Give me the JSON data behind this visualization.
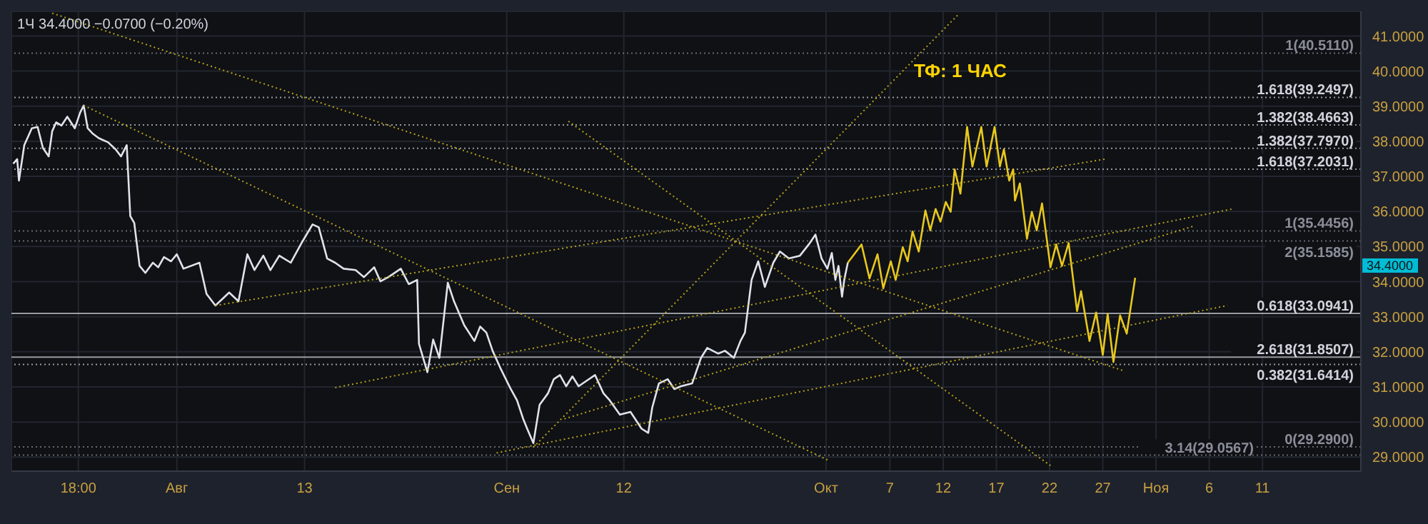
{
  "chart_data": {
    "type": "line",
    "title": "ТФ: 1 ЧАС",
    "subtitle": "1Ч 34.4000 −0.0700 (−0.20%)",
    "xlim": [
      "--07-16T11:00",
      "--11-20T06:00"
    ],
    "ylim": [
      28.6,
      41.7
    ],
    "xticks": [
      {
        "value": "--07-22T18:00",
        "label": "18:00"
      },
      {
        "value": "--08-01",
        "label": "Авг"
      },
      {
        "value": "--08-13",
        "label": "13"
      },
      {
        "value": "--09-01",
        "label": "Сен"
      },
      {
        "value": "--09-12",
        "label": "12"
      },
      {
        "value": "--10-01",
        "label": "Окт"
      },
      {
        "value": "--10-07",
        "label": "7"
      },
      {
        "value": "--10-12",
        "label": "12"
      },
      {
        "value": "--10-17",
        "label": "17"
      },
      {
        "value": "--10-22",
        "label": "22"
      },
      {
        "value": "--10-27",
        "label": "27"
      },
      {
        "value": "--11-01",
        "label": "Ноя"
      },
      {
        "value": "--11-06",
        "label": "6"
      },
      {
        "value": "--11-11",
        "label": "11"
      }
    ],
    "yticks": [
      {
        "value": 29,
        "label": "29.0000"
      },
      {
        "value": 30,
        "label": "30.0000"
      },
      {
        "value": 31,
        "label": "31.0000"
      },
      {
        "value": 32,
        "label": "32.0000"
      },
      {
        "value": 33,
        "label": "33.0000"
      },
      {
        "value": 34,
        "label": "34.0000"
      },
      {
        "value": 35,
        "label": "35.0000"
      },
      {
        "value": 36,
        "label": "36.0000"
      },
      {
        "value": 37,
        "label": "37.0000"
      },
      {
        "value": 38,
        "label": "38.0000"
      },
      {
        "value": 39,
        "label": "39.0000"
      },
      {
        "value": 40,
        "label": "40.0000"
      },
      {
        "value": 41,
        "label": "41.0000"
      }
    ],
    "grid": true,
    "series": [
      {
        "color": "#e0e3eb",
        "line_style": "solid",
        "x": [
          "--07-16T15:00",
          "--07-17T00:00",
          "--07-17T04:00",
          "--07-17T16:00",
          "--07-18T09:00",
          "--07-18T22:00",
          "--07-19T10:00",
          "--07-19T23:00",
          "--07-20T07:00",
          "--07-20T16:00",
          "--07-21T04:00",
          "--07-21T17:00",
          "--07-22T10:00",
          "--07-22T22:00",
          "--07-23T06:00",
          "--07-23T15:00",
          "--07-24T03:00",
          "--07-24T16:00",
          "--07-25T13:00",
          "--07-26T06:00",
          "--07-26T18:00",
          "--07-27T07:00",
          "--07-27T15:00",
          "--07-28T00:00",
          "--07-28T12:00",
          "--07-29T01:00",
          "--07-29T18:00",
          "--07-30T06:00",
          "--07-30T19:00",
          "--07-31T11:00",
          "--08-01T00:00",
          "--08-01T15:00",
          "--08-03T03:00",
          "--08-03T19:00",
          "--08-04T15:00",
          "--08-05T22:00",
          "--08-06T19:00",
          "--08-07T15:00",
          "--08-08T07:00",
          "--08-09T03:00",
          "--08-09T19:00",
          "--08-10T15:00",
          "--08-11T17:00",
          "--08-12T19:00",
          "--08-13T18:00",
          "--08-14T08:00",
          "--08-15T03:00",
          "--08-15T21:00",
          "--08-16T16:00",
          "--08-17T19:00",
          "--08-18T14:00",
          "--08-19T13:00",
          "--08-20T03:00",
          "--08-20T21:00",
          "--08-22T01:00",
          "--08-22T19:00",
          "--08-23T14:00",
          "--08-23T18:00",
          "--08-24T13:00",
          "--08-25T02:00",
          "--08-25T16:00",
          "--08-26T11:00",
          "--08-27T01:00",
          "--08-28T00:00",
          "--08-28T23:00",
          "--08-29T12:00",
          "--08-30T02:00",
          "--08-30T16:00",
          "--08-31T11:00",
          "--09-01T09:00",
          "--09-01T23:00",
          "--09-02T13:00",
          "--09-02T22:00",
          "--09-03T12:00",
          "--09-04T02:00",
          "--09-04T21:00",
          "--09-05T10:00",
          "--09-06T00:00",
          "--09-06T14:00",
          "--09-07T04:00",
          "--09-07T18:00",
          "--09-08T17:00",
          "--09-09T07:00",
          "--09-10T02:00",
          "--09-10T16:00",
          "--09-11T15:00",
          "--09-12T15:00",
          "--09-13T16:00",
          "--09-14T07:00",
          "--09-14T16:00",
          "--09-15T07:00",
          "--09-16T03:00",
          "--09-16T18:00",
          "--09-17T09:00",
          "--09-18T10:00",
          "--09-19T06:00",
          "--09-19T20:00",
          "--09-20T21:00",
          "--09-21T12:00",
          "--09-22T08:00",
          "--09-22T23:00",
          "--09-23T09:00",
          "--09-24T00:00",
          "--09-24T15:00",
          "--09-25T06:00",
          "--09-26T01:00",
          "--09-26T16:00",
          "--09-27T12:00",
          "--09-28T13:00",
          "--09-29T09:00",
          "--09-30T00:00",
          "--09-30T14:00",
          "--10-01T03:00",
          "--10-01T13:00",
          "--10-01T21:00",
          "--10-02T04:00",
          "--10-02T12:00",
          "--10-02T17:00",
          "--10-03T01:00"
        ],
        "values": [
          37.36,
          37.49,
          36.88,
          37.89,
          38.37,
          38.41,
          37.81,
          37.57,
          38.29,
          38.54,
          38.45,
          38.7,
          38.37,
          38.82,
          39.02,
          38.37,
          38.21,
          38.09,
          37.97,
          37.77,
          37.57,
          37.89,
          35.87,
          35.67,
          34.45,
          34.25,
          34.54,
          34.41,
          34.7,
          34.58,
          34.78,
          34.37,
          34.54,
          33.65,
          33.32,
          33.69,
          33.44,
          34.78,
          34.33,
          34.74,
          34.33,
          34.74,
          34.54,
          35.14,
          35.63,
          35.55,
          34.66,
          34.54,
          34.37,
          34.33,
          34.13,
          34.41,
          34.01,
          34.13,
          34.37,
          33.93,
          34.05,
          32.23,
          31.42,
          32.35,
          31.83,
          33.97,
          33.44,
          32.76,
          32.31,
          32.72,
          32.55,
          32.03,
          31.5,
          30.94,
          30.62,
          30.09,
          29.81,
          29.4,
          30.49,
          30.82,
          31.22,
          31.34,
          31.02,
          31.3,
          31.02,
          31.22,
          31.34,
          30.82,
          30.62,
          30.21,
          30.29,
          29.81,
          29.69,
          30.41,
          31.1,
          31.22,
          30.94,
          31.02,
          31.1,
          31.83,
          32.11,
          31.95,
          32.03,
          31.83,
          32.31,
          32.55,
          34.05,
          34.58,
          33.85,
          34.54,
          34.86,
          34.66,
          34.74,
          35.06,
          35.34,
          34.66,
          34.37,
          34.82,
          34.05,
          34.45,
          33.57,
          34.05,
          34.54
        ]
      },
      {
        "color": "#e8c81e",
        "line_style": "solid",
        "x": [
          "--10-03T01:00",
          "--10-04T08:00",
          "--10-05T02:00",
          "--10-05T20:00",
          "--10-06T09:00",
          "--10-07T02:00",
          "--10-07T13:00",
          "--10-08T05:00",
          "--10-08T16:00",
          "--10-09T03:00",
          "--10-09T17:00",
          "--10-10T08:00",
          "--10-10T19:00",
          "--10-11T07:00",
          "--10-11T18:00",
          "--10-12T06:00",
          "--10-12T17:00",
          "--10-13T02:00",
          "--10-13T15:00",
          "--10-14T06:00",
          "--10-14T18:00",
          "--10-15T14:00",
          "--10-16T02:00",
          "--10-16T20:00",
          "--10-17T08:00",
          "--10-17T17:00",
          "--10-18T05:00",
          "--10-18T14:00",
          "--10-18T18:00",
          "--10-19T05:00",
          "--10-19T21:00",
          "--10-20T08:00",
          "--10-20T19:00",
          "--10-21T07:00",
          "--10-22T02:00",
          "--10-22T15:00",
          "--10-23T04:00",
          "--10-23T19:00",
          "--10-24T14:00",
          "--10-24T23:00",
          "--10-25T18:00",
          "--10-26T09:00",
          "--10-27T00:00",
          "--10-27T11:00",
          "--10-28T00:00",
          "--10-28T15:00",
          "--10-29T06:00",
          "--10-30T01:00"
        ],
        "values": [
          34.54,
          35.06,
          34.09,
          34.78,
          33.81,
          34.58,
          34.05,
          34.98,
          34.58,
          35.43,
          34.86,
          36.03,
          35.46,
          36.07,
          35.71,
          36.27,
          35.99,
          37.2,
          36.51,
          38.41,
          37.28,
          38.41,
          37.28,
          38.41,
          37.28,
          37.77,
          36.88,
          37.2,
          36.31,
          36.8,
          35.22,
          35.99,
          35.46,
          36.23,
          34.41,
          35.06,
          34.45,
          35.1,
          33.16,
          33.73,
          32.31,
          33.12,
          31.91,
          33.08,
          31.71,
          33.04,
          32.52,
          34.11
        ]
      },
      {
        "color": "#b8a21c",
        "line_style": "dotted",
        "x": [
          "--07-20T07:00",
          "--10-28T23:00"
        ],
        "values": [
          41.65,
          31.46
        ]
      },
      {
        "color": "#b8a21c",
        "line_style": "dotted",
        "x": [
          "--07-23T06:00",
          "--10-01T03:00"
        ],
        "values": [
          39.02,
          28.92
        ]
      },
      {
        "color": "#b8a21c",
        "line_style": "dotted",
        "x": [
          "--09-06T19:00",
          "--10-22T02:00"
        ],
        "values": [
          38.57,
          28.76
        ]
      },
      {
        "color": "#b8a21c",
        "line_style": "dotted",
        "x": [
          "--09-03T12:00",
          "--10-13T10:00"
        ],
        "values": [
          29.28,
          41.61
        ]
      },
      {
        "color": "#b8a21c",
        "line_style": "dotted",
        "x": [
          "--08-04T15:00",
          "--10-27T04:00"
        ],
        "values": [
          33.32,
          37.49
        ]
      },
      {
        "color": "#b8a21c",
        "line_style": "dotted",
        "x": [
          "--08-15T21:00",
          "--11-08T04:00"
        ],
        "values": [
          30.98,
          36.07
        ]
      },
      {
        "color": "#b8a21c",
        "line_style": "dotted",
        "x": [
          "--08-31T01:00",
          "--11-07T17:00"
        ],
        "values": [
          29.12,
          33.32
        ]
      },
      {
        "color": "#b8a21c",
        "line_style": "dotted",
        "x": [
          "--09-06T10:00",
          "--11-04T15:00"
        ],
        "values": [
          30.09,
          35.59
        ]
      }
    ],
    "ref_lines": [
      {
        "axis": "y",
        "value": 40.511,
        "label": "1(40.5110)",
        "color": "#8a8e99",
        "line_style": "dotted"
      },
      {
        "axis": "y",
        "value": 39.2497,
        "label": "1.618(39.2497)",
        "color": "#d1d4dc",
        "line_style": "dotted"
      },
      {
        "axis": "y",
        "value": 38.4663,
        "label": "1.382(38.4663)",
        "color": "#d1d4dc",
        "line_style": "dotted"
      },
      {
        "axis": "y",
        "value": 37.797,
        "label": "1.382(37.7970)",
        "color": "#d1d4dc",
        "line_style": "dotted"
      },
      {
        "axis": "y",
        "value": 37.2031,
        "label": "1.618(37.2031)",
        "color": "#d1d4dc",
        "line_style": "dotted"
      },
      {
        "axis": "y",
        "value": 35.4456,
        "label": "1(35.4456)",
        "color": "#8a8e99",
        "line_style": "dotted"
      },
      {
        "axis": "y",
        "value": 35.1585,
        "label": "2(35.1585)",
        "color": "#8a8e99",
        "line_style": "dotted"
      },
      {
        "axis": "y",
        "value": 33.0941,
        "label": "0.618(33.0941)",
        "color": "#d1d4dc",
        "line_style": "solid"
      },
      {
        "axis": "y",
        "value": 31.8507,
        "label": "2.618(31.8507)",
        "color": "#d1d4dc",
        "line_style": "solid"
      },
      {
        "axis": "y",
        "value": 31.6414,
        "label": "0.382(31.6414)",
        "color": "#d1d4dc",
        "line_style": "dotted"
      },
      {
        "axis": "y",
        "value": 29.29,
        "label": "0(29.2900)",
        "color": "#8a8e99",
        "line_style": "dotted"
      },
      {
        "axis": "y",
        "value": 29.0567,
        "label": "3.14(29.0567)",
        "color": "#8a8e99",
        "line_style": "dotted"
      }
    ],
    "annotations": [
      "34.4000"
    ]
  }
}
